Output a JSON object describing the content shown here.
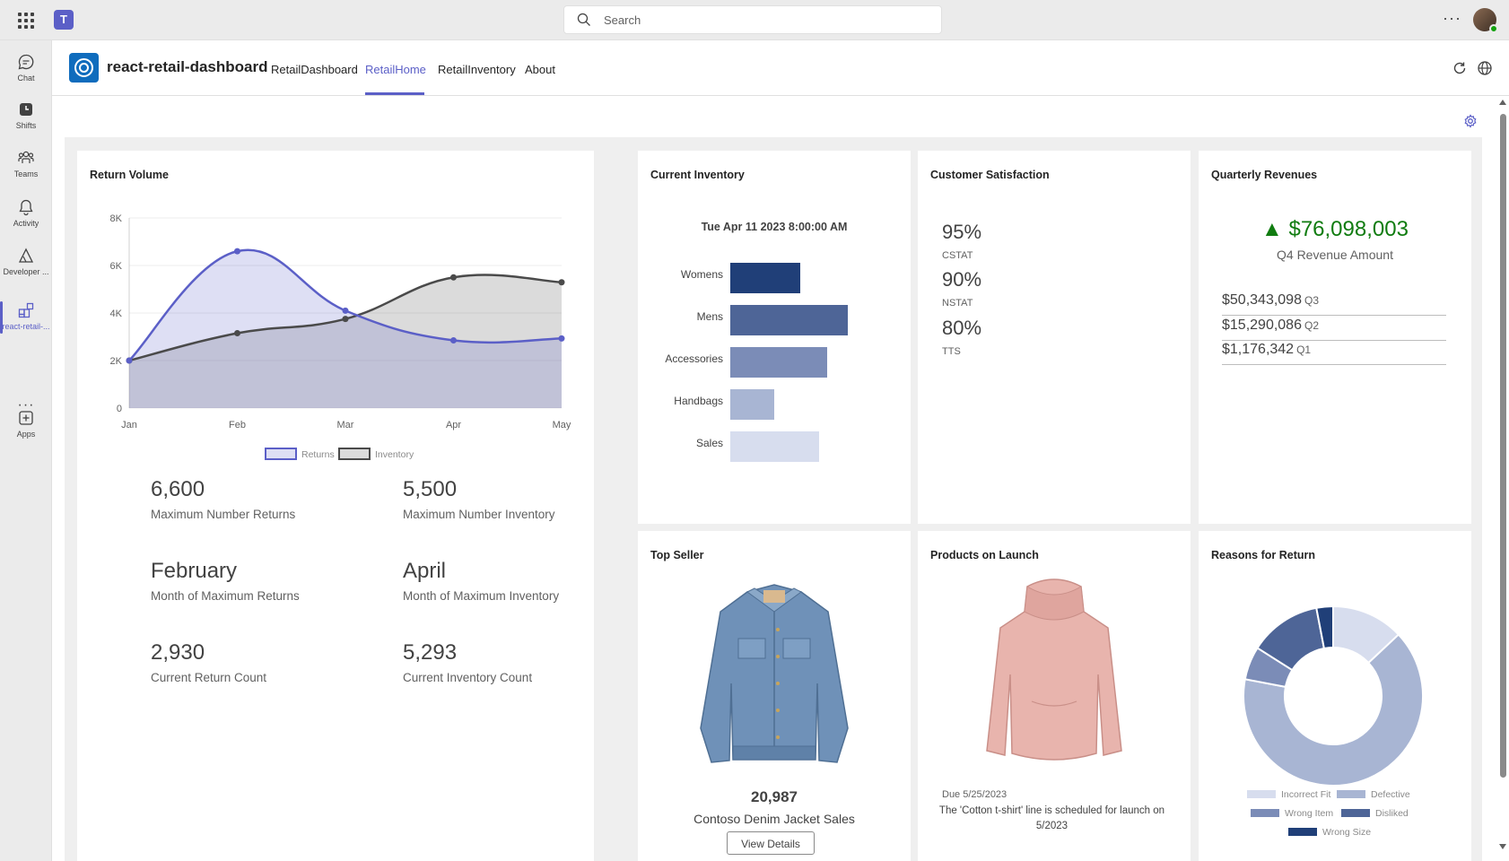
{
  "topbar": {
    "search_placeholder": "Search"
  },
  "rail": {
    "items": [
      {
        "label": "Chat"
      },
      {
        "label": "Shifts"
      },
      {
        "label": "Teams"
      },
      {
        "label": "Activity"
      },
      {
        "label": "Developer ..."
      },
      {
        "label": "react-retail-..."
      },
      {
        "label": "Apps"
      }
    ],
    "more": "···"
  },
  "app": {
    "title": "react-retail-dashboard",
    "tabs": [
      "RetailDashboard",
      "RetailHome",
      "RetailInventory",
      "About"
    ],
    "active_tab": "RetailHome"
  },
  "colors": {
    "accent": "#5b5fc7",
    "returns": "#5b5fc7",
    "inventory": "#4a4a4a",
    "positive": "#107c10"
  },
  "return_volume": {
    "title": "Return Volume",
    "stats": [
      {
        "value": "6,600",
        "label": "Maximum Number Returns"
      },
      {
        "value": "5,500",
        "label": "Maximum Number Inventory"
      },
      {
        "value": "February",
        "label": "Month of Maximum Returns"
      },
      {
        "value": "April",
        "label": "Month of Maximum Inventory"
      },
      {
        "value": "2,930",
        "label": "Current Return Count"
      },
      {
        "value": "5,293",
        "label": "Current Inventory Count"
      }
    ]
  },
  "current_inventory": {
    "title": "Current Inventory",
    "date": "Tue Apr 11 2023 8:00:00 AM"
  },
  "customer_satisfaction": {
    "title": "Customer Satisfaction",
    "metrics": [
      {
        "value": "95%",
        "label": "CSTAT"
      },
      {
        "value": "90%",
        "label": "NSTAT"
      },
      {
        "value": "80%",
        "label": "TTS"
      }
    ]
  },
  "quarterly_revenues": {
    "title": "Quarterly Revenues",
    "main_value": "▲ $76,098,003",
    "main_label": "Q4 Revenue Amount",
    "rows": [
      {
        "value": "$50,343,098",
        "quarter": "Q3"
      },
      {
        "value": "$15,290,086",
        "quarter": "Q2"
      },
      {
        "value": "$1,176,342",
        "quarter": "Q1"
      }
    ]
  },
  "top_seller": {
    "title": "Top Seller",
    "count": "20,987",
    "name": "Contoso Denim Jacket Sales",
    "button": "View Details"
  },
  "products_on_launch": {
    "title": "Products on Launch",
    "due": "Due 5/25/2023",
    "description": "The 'Cotton t-shirt' line is scheduled for launch on 5/2023"
  },
  "reasons_for_return": {
    "title": "Reasons for Return"
  },
  "chart_data": [
    {
      "type": "area",
      "title": "Return Volume",
      "x": [
        "Jan",
        "Feb",
        "Mar",
        "Apr",
        "May"
      ],
      "ylim": [
        0,
        8000
      ],
      "yticks": [
        "0",
        "2K",
        "4K",
        "6K",
        "8K"
      ],
      "series": [
        {
          "name": "Returns",
          "values": [
            2000,
            6600,
            4100,
            2850,
            2930
          ],
          "color": "#5b5fc7"
        },
        {
          "name": "Inventory",
          "values": [
            2000,
            3150,
            3750,
            5500,
            5293
          ],
          "color": "#4a4a4a"
        }
      ],
      "legend": "bottom",
      "grid": true
    },
    {
      "type": "bar",
      "orientation": "horizontal",
      "categories": [
        "Womens",
        "Mens",
        "Accessories",
        "Handbags",
        "Sales"
      ],
      "values": [
        78,
        131,
        108,
        49,
        99
      ],
      "colors": [
        "#203f78",
        "#4e6597",
        "#7b8cb7",
        "#a8b5d3",
        "#d7ddee"
      ]
    },
    {
      "type": "pie",
      "donut": true,
      "categories": [
        "Incorrect Fit",
        "Defective",
        "Wrong Item",
        "Disliked",
        "Wrong Size"
      ],
      "values": [
        13,
        65,
        6,
        13,
        3
      ],
      "colors": [
        "#d7ddee",
        "#a8b5d3",
        "#7b8cb7",
        "#4e6597",
        "#203f78"
      ],
      "legend": "bottom"
    }
  ]
}
